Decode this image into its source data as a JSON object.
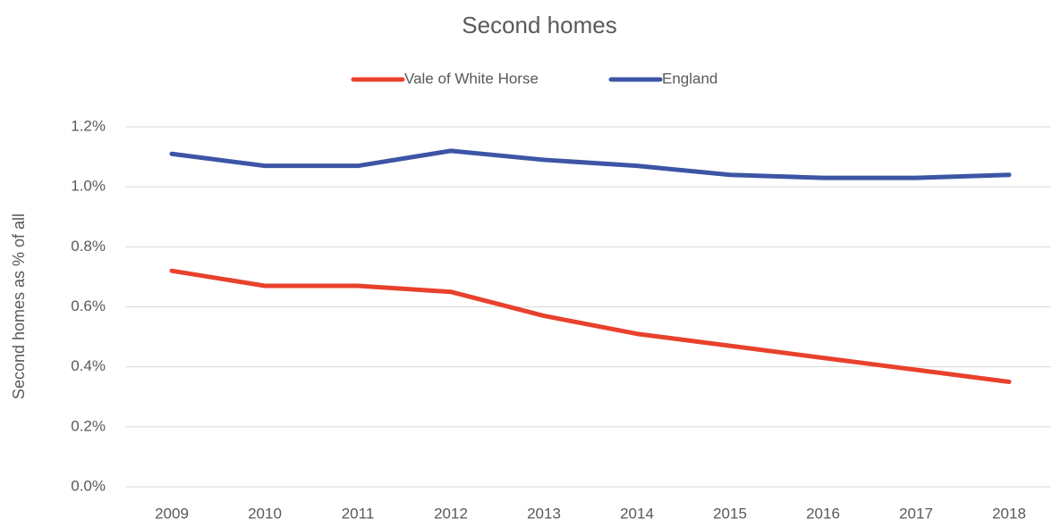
{
  "chart_data": {
    "type": "line",
    "title": "Second homes",
    "y_label": "Second homes as % of all",
    "categories": [
      "2009",
      "2010",
      "2011",
      "2012",
      "2013",
      "2014",
      "2015",
      "2016",
      "2017",
      "2018"
    ],
    "series": [
      {
        "name": "Vale of White Horse",
        "color": "#e8412c",
        "values": [
          0.72,
          0.67,
          0.67,
          0.65,
          0.57,
          0.51,
          0.47,
          0.43,
          0.39,
          0.35
        ]
      },
      {
        "name": "England",
        "color": "#3c55a5",
        "values": [
          1.11,
          1.07,
          1.07,
          1.12,
          1.09,
          1.07,
          1.04,
          1.03,
          1.03,
          1.04
        ]
      }
    ],
    "ylim": [
      0,
      1.2
    ],
    "yticks": [
      {
        "value": 0,
        "label": "0.0%"
      },
      {
        "value": 0.2,
        "label": "0.2%"
      },
      {
        "value": 0.4,
        "label": "0.4%"
      },
      {
        "value": 0.6,
        "label": "0.6%"
      },
      {
        "value": 0.8,
        "label": "0.8%"
      },
      {
        "value": 1.0,
        "label": "1.0%"
      },
      {
        "value": 1.2,
        "label": "1.2%"
      }
    ],
    "grid": true,
    "legend": "top"
  }
}
